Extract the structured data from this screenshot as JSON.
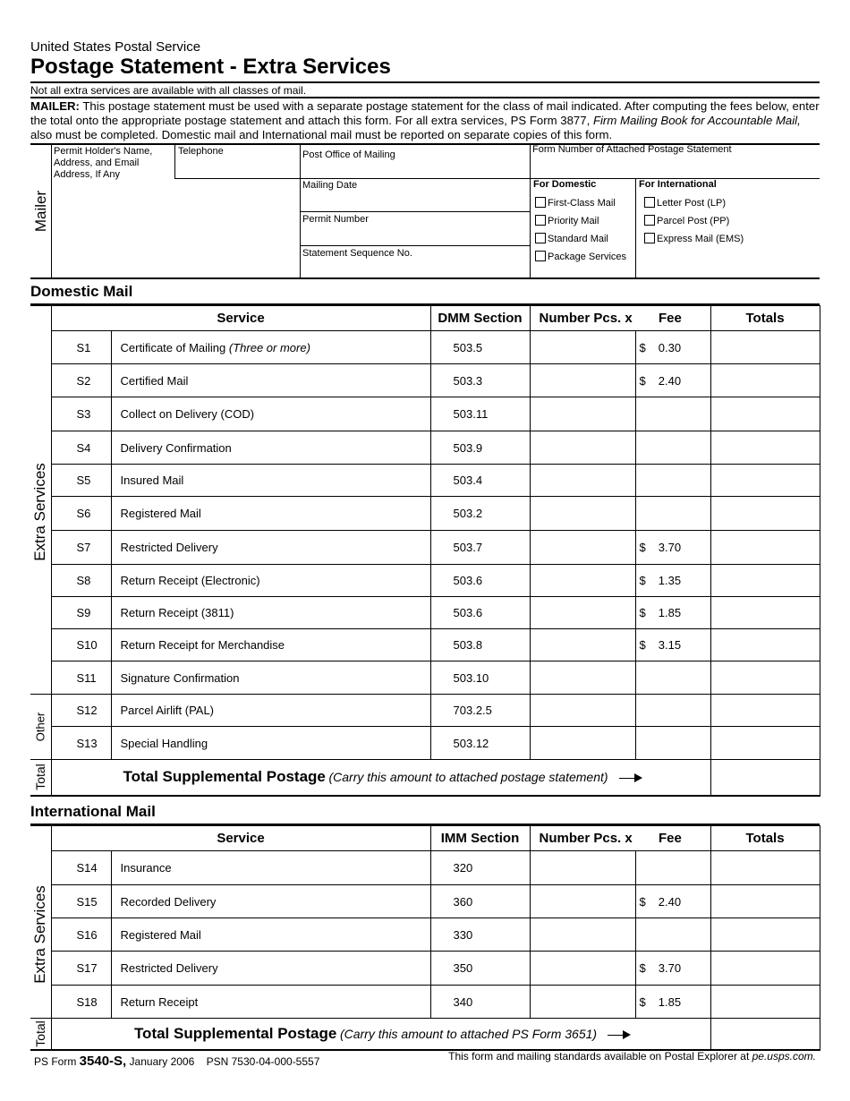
{
  "header": {
    "org": "United States Postal Service",
    "title": "Postage Statement -  Extra Services",
    "note": "Not all extra services are available with all classes of mail."
  },
  "instructions": {
    "lead": "MAILER:",
    "text1": " This postage statement must be used with a separate postage statement for the class of mail indicated.  After computing the fees below, enter the total onto the appropriate postage statement and attach this form. For all extra services, PS Form 3877, ",
    "italic": "Firm Mailing Book for Accountable Mail,",
    "text2": " also must be completed. Domestic mail and International mail must be reported on separate copies of this form."
  },
  "mailer": {
    "side_label": "Mailer",
    "permit_holder": "Permit Holder's Name, Address, and Email Address, If Any",
    "telephone": "Telephone",
    "post_office": "Post Office of Mailing",
    "form_number": "Form Number of Attached Postage Statement",
    "mailing_date": "Mailing Date",
    "permit_number": "Permit Number",
    "sequence": "Statement Sequence No.",
    "domestic_heading": "For Domestic",
    "international_heading": "For International",
    "domestic_options": [
      "First-Class Mail",
      "Priority Mail",
      "Standard Mail",
      "Package Services"
    ],
    "international_options": [
      "Letter Post (LP)",
      "Parcel Post (PP)",
      "Express Mail (EMS)"
    ]
  },
  "domestic": {
    "heading": "Domestic Mail",
    "col_service": "Service",
    "col_section": "DMM Section",
    "col_number": "Number Pcs.  x",
    "col_fee": "Fee",
    "col_totals": "Totals",
    "side_extra": "Extra Services",
    "side_other": "Other",
    "side_total": "Total",
    "rows": [
      {
        "code": "S1",
        "service": "Certificate of Mailing ",
        "service_italic": "(Three or more)",
        "section": "503.5",
        "fee": "0.30"
      },
      {
        "code": "S2",
        "service": "Certified Mail",
        "section": "503.3",
        "fee": "2.40"
      },
      {
        "code": "S3",
        "service": "Collect on Delivery (COD)",
        "section": "503.11",
        "fee": ""
      },
      {
        "code": "S4",
        "service": "Delivery Confirmation",
        "section": "503.9",
        "fee": ""
      },
      {
        "code": "S5",
        "service": "Insured Mail",
        "section": "503.4",
        "fee": ""
      },
      {
        "code": "S6",
        "service": "Registered Mail",
        "section": "503.2",
        "fee": ""
      },
      {
        "code": "S7",
        "service": "Restricted Delivery",
        "section": "503.7",
        "fee": "3.70"
      },
      {
        "code": "S8",
        "service": "Return Receipt (Electronic)",
        "section": "503.6",
        "fee": "1.35"
      },
      {
        "code": "S9",
        "service": "Return Receipt (3811)",
        "section": "503.6",
        "fee": "1.85"
      },
      {
        "code": "S10",
        "service": "Return Receipt for Merchandise",
        "section": "503.8",
        "fee": "3.15"
      },
      {
        "code": "S11",
        "service": "Signature Confirmation",
        "section": "503.10",
        "fee": ""
      },
      {
        "code": "S12",
        "service": "Parcel Airlift (PAL)",
        "section": "703.2.5",
        "fee": ""
      },
      {
        "code": "S13",
        "service": "Special Handling",
        "section": "503.12",
        "fee": ""
      }
    ],
    "total_bold": "Total Supplemental Postage",
    "total_italic": "(Carry this amount to attached postage statement)"
  },
  "international": {
    "heading": "International Mail",
    "col_service": "Service",
    "col_section": "IMM Section",
    "col_number": "Number Pcs.  x",
    "col_fee": "Fee",
    "col_totals": "Totals",
    "side_extra": "Extra Services",
    "side_total": "Total",
    "rows": [
      {
        "code": "S14",
        "service": "Insurance",
        "section": "320",
        "fee": ""
      },
      {
        "code": "S15",
        "service": "Recorded Delivery",
        "section": "360",
        "fee": "2.40"
      },
      {
        "code": "S16",
        "service": "Registered Mail",
        "section": "330",
        "fee": ""
      },
      {
        "code": "S17",
        "service": "Restricted Delivery",
        "section": "350",
        "fee": "3.70"
      },
      {
        "code": "S18",
        "service": "Return Receipt",
        "section": "340",
        "fee": "1.85"
      }
    ],
    "total_bold": "Total Supplemental Postage",
    "total_italic": "(Carry this amount to attached PS Form 3651)"
  },
  "currency": "$",
  "footer": {
    "prefix": "PS Form ",
    "form": "3540-S,",
    "date": " January 2006",
    "psn": "PSN 7530-04-000-5557",
    "right": "This form and mailing standards available on Postal Explorer at ",
    "right_italic": "pe.usps.com."
  }
}
